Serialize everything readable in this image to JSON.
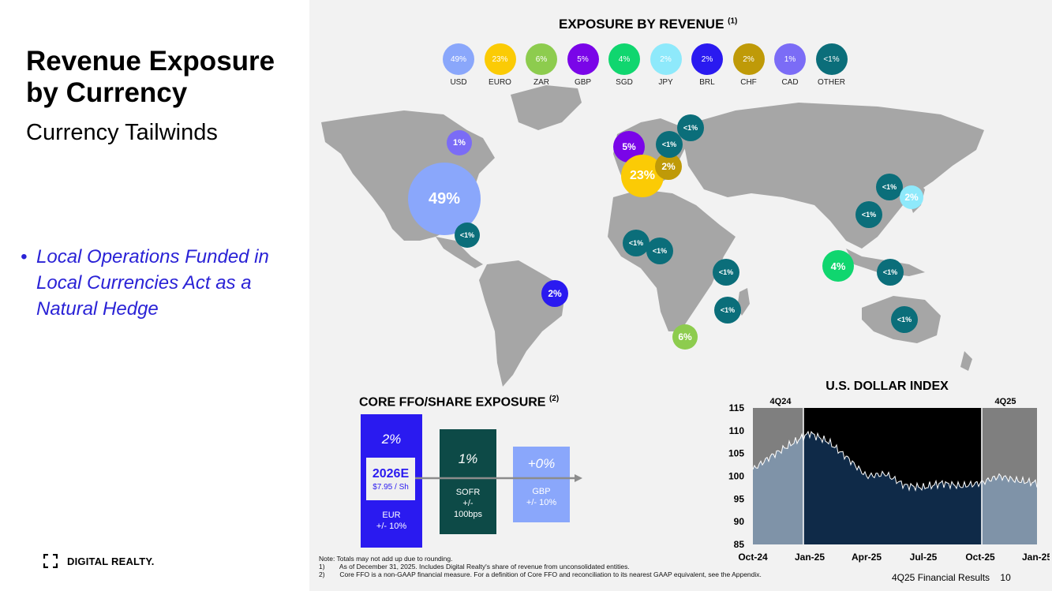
{
  "slide": {
    "title": "Revenue Exposure by Currency",
    "subtitle": "Currency Tailwinds",
    "bullet": "Local Operations Funded in Local Currencies Act as a Natural Hedge",
    "logo_text": "DIGITAL REALTY."
  },
  "exposure": {
    "title": "EXPOSURE BY REVENUE",
    "title_sup": "(1)",
    "legend": [
      {
        "pct": "49%",
        "label": "USD",
        "color": "#8aa7fb"
      },
      {
        "pct": "23%",
        "label": "EURO",
        "color": "#fbcb05"
      },
      {
        "pct": "6%",
        "label": "ZAR",
        "color": "#8dcc4e"
      },
      {
        "pct": "5%",
        "label": "GBP",
        "color": "#7a05e8"
      },
      {
        "pct": "4%",
        "label": "SGD",
        "color": "#10d66f"
      },
      {
        "pct": "2%",
        "label": "JPY",
        "color": "#8ee9fb"
      },
      {
        "pct": "2%",
        "label": "BRL",
        "color": "#2a1af0"
      },
      {
        "pct": "2%",
        "label": "CHF",
        "color": "#bf9a08"
      },
      {
        "pct": "1%",
        "label": "CAD",
        "color": "#7b6cf6"
      },
      {
        "pct": "<1%",
        "label": "OTHER",
        "color": "#0b6e7a"
      }
    ],
    "bubbles": [
      {
        "label": "49%",
        "currency": "USD"
      },
      {
        "label": "1%",
        "currency": "CAD"
      },
      {
        "label": "<1%",
        "currency": "OTHER"
      },
      {
        "label": "2%",
        "currency": "BRL"
      },
      {
        "label": "5%",
        "currency": "GBP"
      },
      {
        "label": "23%",
        "currency": "EURO"
      },
      {
        "label": "2%",
        "currency": "CHF"
      },
      {
        "label": "<1%",
        "currency": "OTHER"
      },
      {
        "label": "<1%",
        "currency": "OTHER"
      },
      {
        "label": "<1%",
        "currency": "OTHER"
      },
      {
        "label": "<1%",
        "currency": "OTHER"
      },
      {
        "label": "<1%",
        "currency": "OTHER"
      },
      {
        "label": "<1%",
        "currency": "OTHER"
      },
      {
        "label": "6%",
        "currency": "ZAR"
      },
      {
        "label": "<1%",
        "currency": "OTHER"
      },
      {
        "label": "2%",
        "currency": "JPY"
      },
      {
        "label": "<1%",
        "currency": "OTHER"
      },
      {
        "label": "4%",
        "currency": "SGD"
      },
      {
        "label": "<1%",
        "currency": "OTHER"
      },
      {
        "label": "<1%",
        "currency": "OTHER"
      }
    ]
  },
  "ffo": {
    "title": "CORE FFO/SHARE EXPOSURE",
    "title_sup": "(2)",
    "eur": {
      "pct": "2%",
      "name": "EUR",
      "range": "+/- 10%",
      "color": "#2a1af0"
    },
    "box": {
      "year": "2026E",
      "value": "$7.95 / Sh"
    },
    "sofr": {
      "pct": "1%",
      "name": "SOFR",
      "range_line1": "+/-",
      "range_line2": "100bps",
      "color": "#0d4a47"
    },
    "gbp": {
      "pct": "+0%",
      "name": "GBP",
      "range": "+/- 10%",
      "color": "#8aa7fb"
    }
  },
  "chart_data": {
    "type": "area",
    "title": "U.S. DOLLAR  INDEX",
    "period_labels": [
      "4Q24",
      "4Q25"
    ],
    "x_tick_labels": [
      "Oct-24",
      "Jan-25",
      "Apr-25",
      "Jul-25",
      "Oct-25",
      "Jan-25"
    ],
    "y_ticks": [
      85,
      90,
      95,
      100,
      105,
      110,
      115
    ],
    "ylim": [
      85,
      115
    ],
    "x": [
      "Oct-24",
      "Nov-24",
      "Dec-24",
      "Jan-25",
      "Feb-25",
      "Mar-25",
      "Apr-25",
      "May-25",
      "Jun-25",
      "Jul-25",
      "Aug-25",
      "Sep-25",
      "Oct-25",
      "Nov-25",
      "Dec-25",
      "Jan-26"
    ],
    "values": [
      101.5,
      104.5,
      107.0,
      109.5,
      107.5,
      104.0,
      100.0,
      100.5,
      98.0,
      97.5,
      98.5,
      97.8,
      98.5,
      100.0,
      99.0,
      98.5
    ],
    "colors": {
      "shaded_period": "#7f7f7f",
      "middle_period": "#000000",
      "area_shaded": "#7f93a8",
      "area_middle": "#0f2a48"
    }
  },
  "footnotes": {
    "note": "Note:  Totals may not add up due to rounding.",
    "items": [
      {
        "num": "1)",
        "text": "As of December 31, 2025.  Includes Digital Realty's share of revenue from unconsolidated entities."
      },
      {
        "num": "2)",
        "text": "Core FFO is a non-GAAP financial measure.  For a definition of Core FFO and reconciliation to its nearest GAAP equivalent, see the Appendix."
      }
    ]
  },
  "footer": {
    "report": "4Q25 Financial Results",
    "page": "10"
  }
}
